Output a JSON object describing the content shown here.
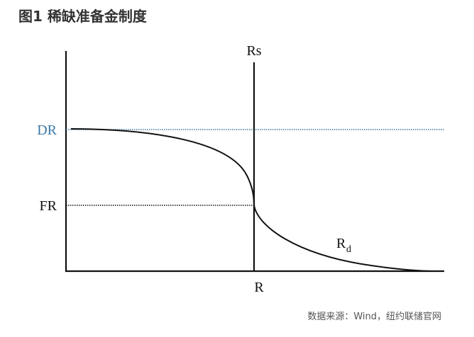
{
  "header": {
    "title": "图1  稀缺准备金制度"
  },
  "labels": {
    "rs": "Rs",
    "dr": "DR",
    "fr": "FR",
    "rd": {
      "main": "R",
      "sub": "d"
    },
    "r": "R"
  },
  "footer": {
    "source": "数据来源：Wind，纽约联储官网"
  }
}
